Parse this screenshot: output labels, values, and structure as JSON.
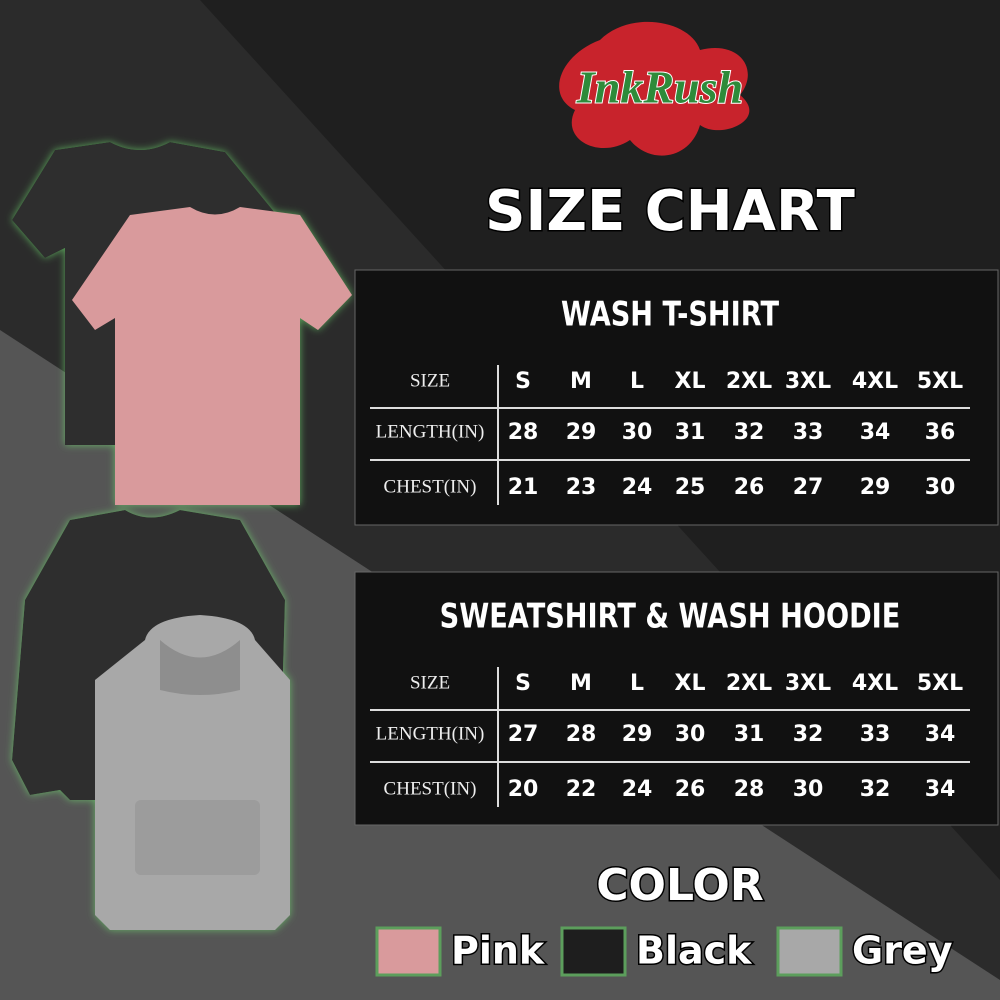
{
  "brand": "InkRush",
  "title": "SIZE CHART",
  "tables": [
    {
      "title": "WASH T-SHIRT",
      "header": [
        "SIZE",
        "S",
        "M",
        "L",
        "XL",
        "2XL",
        "3XL",
        "4XL",
        "5XL"
      ],
      "rows": [
        [
          "LENGTH(IN)",
          "28",
          "29",
          "30",
          "31",
          "32",
          "33",
          "34",
          "36"
        ],
        [
          "CHEST(IN)",
          "21",
          "23",
          "24",
          "25",
          "26",
          "27",
          "29",
          "30"
        ]
      ]
    },
    {
      "title": "SWEATSHIRT & WASH HOODIE",
      "header": [
        "SIZE",
        "S",
        "M",
        "L",
        "XL",
        "2XL",
        "3XL",
        "4XL",
        "5XL"
      ],
      "rows": [
        [
          "LENGTH(IN)",
          "27",
          "28",
          "29",
          "30",
          "31",
          "32",
          "33",
          "34"
        ],
        [
          "CHEST(IN)",
          "20",
          "22",
          "24",
          "26",
          "28",
          "30",
          "32",
          "34"
        ]
      ]
    }
  ],
  "colors": {
    "title": "COLOR",
    "items": [
      "Pink",
      "Black",
      "Grey"
    ]
  }
}
